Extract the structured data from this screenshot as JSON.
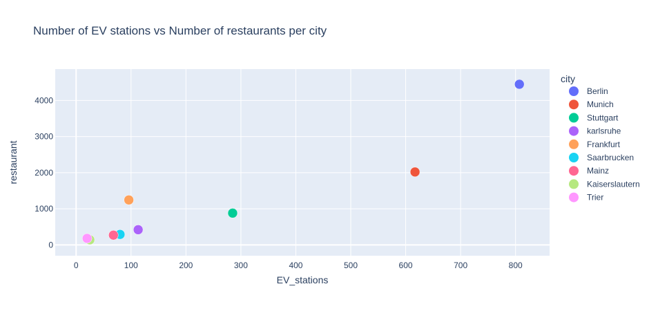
{
  "chart_data": {
    "type": "scatter",
    "title": "Number of EV stations vs Number of restaurants per city",
    "xlabel": "EV_stations",
    "ylabel": "restaurant",
    "xlim": [
      -38,
      862
    ],
    "ylim": [
      -300,
      4870
    ],
    "xticks": [
      0,
      100,
      200,
      300,
      400,
      500,
      600,
      700,
      800
    ],
    "yticks": [
      0,
      1000,
      2000,
      3000,
      4000
    ],
    "grid": true,
    "legend": {
      "title": "city",
      "placement": "right"
    },
    "series": [
      {
        "name": "Berlin",
        "color": "#636efa",
        "x": [
          807
        ],
        "y": [
          4450
        ]
      },
      {
        "name": "Munich",
        "color": "#ef553b",
        "x": [
          617
        ],
        "y": [
          2020
        ]
      },
      {
        "name": "Stuttgart",
        "color": "#00cc96",
        "x": [
          285
        ],
        "y": [
          880
        ]
      },
      {
        "name": "karlsruhe",
        "color": "#ab63fa",
        "x": [
          113
        ],
        "y": [
          420
        ]
      },
      {
        "name": "Frankfurt",
        "color": "#ffa15a",
        "x": [
          96
        ],
        "y": [
          1245
        ]
      },
      {
        "name": "Saarbrucken",
        "color": "#19d3f3",
        "x": [
          80
        ],
        "y": [
          290
        ]
      },
      {
        "name": "Mainz",
        "color": "#ff6692",
        "x": [
          68
        ],
        "y": [
          270
        ]
      },
      {
        "name": "Kaiserslautern",
        "color": "#b6e880",
        "x": [
          25
        ],
        "y": [
          140
        ]
      },
      {
        "name": "Trier",
        "color": "#ff97ff",
        "x": [
          20
        ],
        "y": [
          180
        ]
      }
    ]
  }
}
